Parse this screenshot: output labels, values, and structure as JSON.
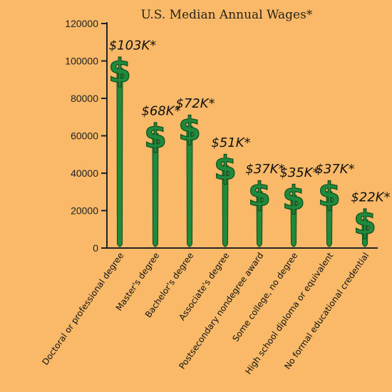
{
  "chart_data": {
    "type": "bar",
    "title": "U.S. Median Annual Wages*",
    "categories": [
      "Doctoral or professional degree",
      "Master's degree",
      "Bachelor's degree",
      "Associate's degree",
      "Postsecondary nondegree award",
      "Some college, no degree",
      "High school diploma or equivalent",
      "No formal educational credential"
    ],
    "values": [
      103000,
      68000,
      72000,
      51000,
      37000,
      35000,
      37000,
      22000
    ],
    "data_labels": [
      "$103K*",
      "$68K*",
      "$72K*",
      "$51K*",
      "$37K*",
      "$35K*",
      "$37K*",
      "$22K*"
    ],
    "yticks": [
      "0",
      "20000",
      "40000",
      "60000",
      "80000",
      "100000",
      "120000"
    ],
    "ylim": [
      0,
      120000
    ],
    "xlabel": "",
    "ylabel": "",
    "bar_symbol": "$",
    "colors": {
      "background": "#f9b968",
      "bar": "#1f8a3c",
      "bar_outline": "#0f4d20",
      "axis": "#222222"
    }
  }
}
